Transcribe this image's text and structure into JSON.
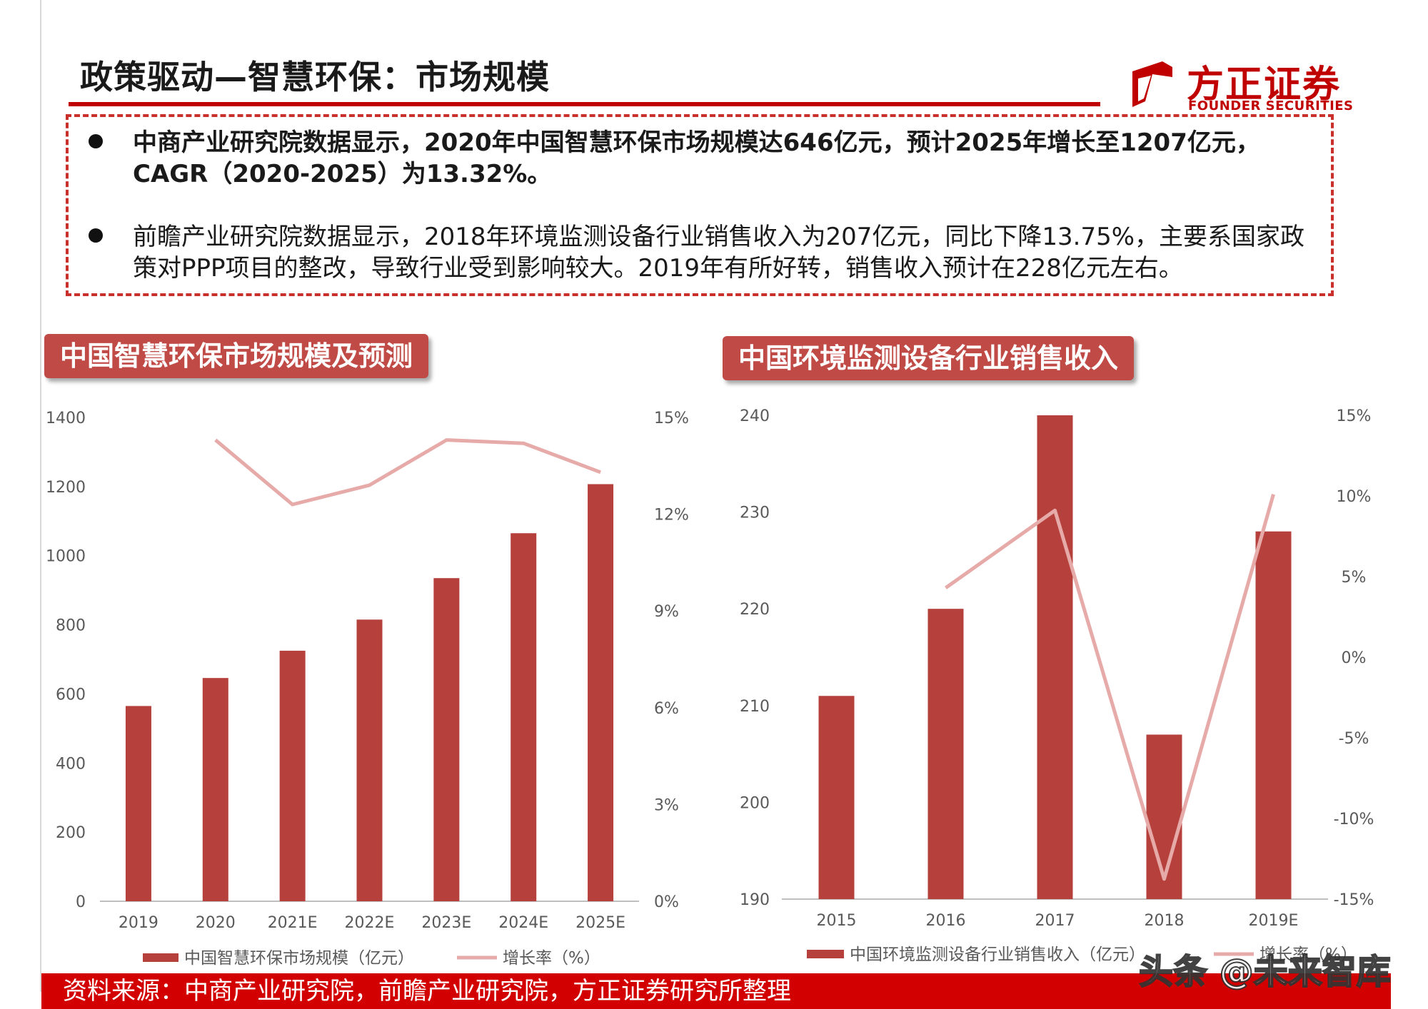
{
  "page": {
    "title": "政策驱动—智慧环保：市场规模",
    "logo": {
      "cn": "方正证券",
      "en": "FOUNDER SECURITIES"
    },
    "bullets": [
      {
        "text": "中商产业研究院数据显示，2020年中国智慧环保市场规模达646亿元，预计2025年增长至1207亿元，CAGR（2020-2025）为13.32%。"
      },
      {
        "text": "前瞻产业研究院数据显示，2018年环境监测设备行业销售收入为207亿元，同比下降13.75%，主要系国家政策对PPP项目的整改，导致行业受到影响较大。2019年有所好转，销售收入预计在228亿元左右。"
      }
    ],
    "footer": "资料来源：中商产业研究院，前瞻产业研究院，方正证券研究所整理",
    "watermark": "头条 @未来智库"
  },
  "colors": {
    "bar": "#b5403c",
    "line": "#e6aaa8",
    "accent": "#c00000"
  },
  "chart_data": [
    {
      "type": "bar",
      "title": "中国智慧环保市场规模及预测",
      "categories": [
        "2019",
        "2020",
        "2021E",
        "2022E",
        "2023E",
        "2024E",
        "2025E"
      ],
      "series": [
        {
          "name": "中国智慧环保市场规模（亿元）",
          "type": "bar",
          "axis": "left",
          "values": [
            565,
            646,
            725,
            815,
            935,
            1065,
            1207
          ]
        },
        {
          "name": "增长率（%）",
          "type": "line",
          "axis": "right",
          "values": [
            null,
            14.3,
            12.3,
            12.9,
            14.3,
            14.2,
            13.3
          ]
        }
      ],
      "yleft": {
        "min": 0,
        "max": 1400,
        "ticks": [
          "0",
          "200",
          "400",
          "600",
          "800",
          "1000",
          "1200",
          "1400"
        ]
      },
      "yright": {
        "min": 0,
        "max": 15,
        "ticks": [
          "0%",
          "3%",
          "6%",
          "9%",
          "12%",
          "15%"
        ]
      },
      "legend": "bottom",
      "grid": false
    },
    {
      "type": "bar",
      "title": "中国环境监测设备行业销售收入",
      "categories": [
        "2015",
        "2016",
        "2017",
        "2018",
        "2019E"
      ],
      "series": [
        {
          "name": "中国环境监测设备行业销售收入（亿元）",
          "type": "bar",
          "axis": "left",
          "values": [
            211,
            220,
            240,
            207,
            228
          ]
        },
        {
          "name": "增长率（%）",
          "type": "line",
          "axis": "right",
          "values": [
            null,
            4.3,
            9.1,
            -13.75,
            10.1
          ]
        }
      ],
      "yleft": {
        "min": 190,
        "max": 240,
        "ticks": [
          "190",
          "200",
          "210",
          "220",
          "230",
          "240"
        ]
      },
      "yright": {
        "min": -15,
        "max": 15,
        "ticks": [
          "-15%",
          "-10%",
          "-5%",
          "0%",
          "5%",
          "10%",
          "15%"
        ]
      },
      "legend": "bottom",
      "grid": false
    }
  ]
}
